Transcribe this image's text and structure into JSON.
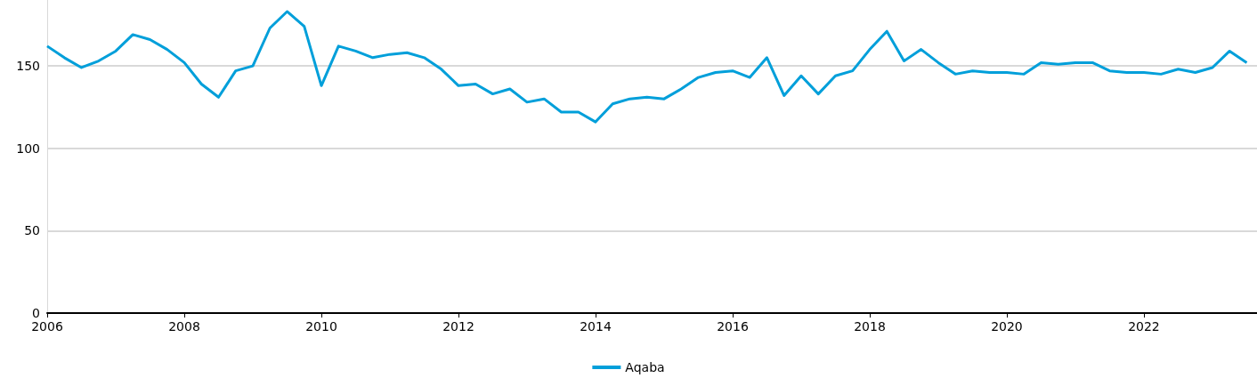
{
  "chart_data": {
    "type": "line",
    "x": [
      2006,
      2006.25,
      2006.5,
      2006.75,
      2007,
      2007.25,
      2007.5,
      2007.75,
      2008,
      2008.25,
      2008.5,
      2008.75,
      2009,
      2009.25,
      2009.5,
      2009.75,
      2010,
      2010.25,
      2010.5,
      2010.75,
      2011,
      2011.25,
      2011.5,
      2011.75,
      2012,
      2012.25,
      2012.5,
      2012.75,
      2013,
      2013.25,
      2013.5,
      2013.75,
      2014,
      2014.25,
      2014.5,
      2014.75,
      2015,
      2015.25,
      2015.5,
      2015.75,
      2016,
      2016.25,
      2016.5,
      2016.75,
      2017,
      2017.25,
      2017.5,
      2017.75,
      2018,
      2018.25,
      2018.5,
      2018.75,
      2019,
      2019.25,
      2019.5,
      2019.75,
      2020,
      2020.25,
      2020.5,
      2020.75,
      2021,
      2021.25,
      2021.5,
      2021.75,
      2022,
      2022.25,
      2022.5,
      2022.75,
      2023,
      2023.25,
      2023.5
    ],
    "series": [
      {
        "name": "Aqaba",
        "color": "#009fda",
        "values": [
          162,
          155,
          149,
          153,
          159,
          169,
          166,
          160,
          152,
          139,
          131,
          147,
          150,
          173,
          183,
          174,
          138,
          162,
          159,
          155,
          157,
          158,
          155,
          148,
          138,
          139,
          133,
          136,
          128,
          130,
          122,
          122,
          116,
          127,
          130,
          131,
          130,
          136,
          143,
          146,
          147,
          143,
          155,
          132,
          144,
          133,
          144,
          147,
          160,
          171,
          153,
          160,
          152,
          145,
          147,
          146,
          146,
          145,
          152,
          151,
          152,
          152,
          147,
          146,
          146,
          145,
          148,
          146,
          149,
          159,
          152
        ]
      }
    ],
    "xlim": [
      2006,
      2023.65
    ],
    "xticks": [
      2006,
      2008,
      2010,
      2012,
      2014,
      2016,
      2018,
      2020,
      2022
    ],
    "ylim": [
      0,
      190
    ],
    "yticks": [
      0,
      50,
      100,
      150
    ],
    "grid": "y",
    "legend": "bottom",
    "marker": "none",
    "line_style": "solid"
  }
}
